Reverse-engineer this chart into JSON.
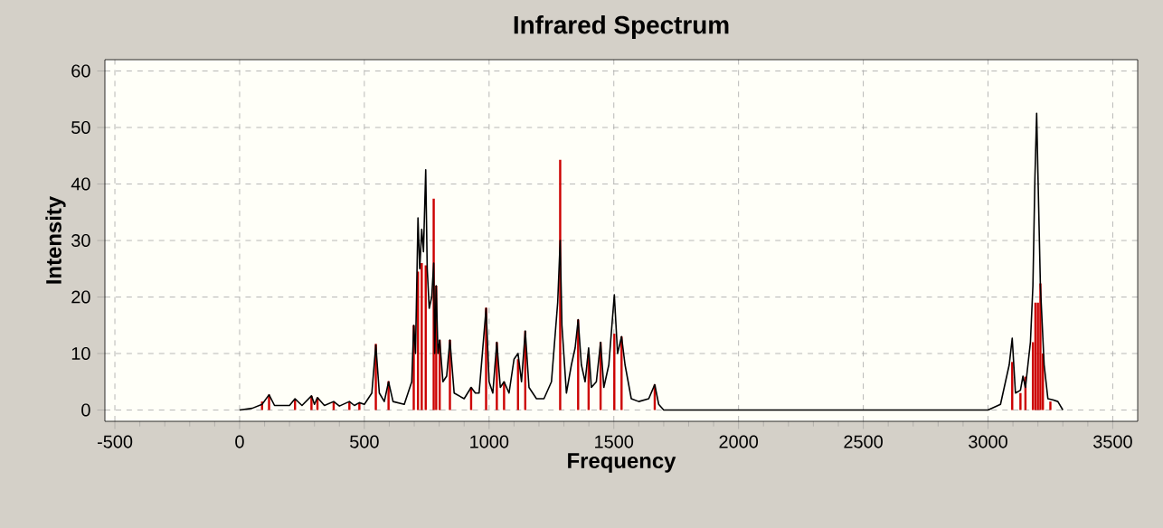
{
  "chart_data": {
    "type": "line",
    "title": "Infrared Spectrum",
    "xlabel": "Frequency",
    "ylabel": "Intensity",
    "xlim": [
      -540,
      3600
    ],
    "ylim": [
      -2,
      62
    ],
    "xticks": [
      -500,
      0,
      500,
      1000,
      1500,
      2000,
      2500,
      3000,
      3500
    ],
    "yticks": [
      0,
      10,
      20,
      30,
      40,
      50,
      60
    ],
    "grid": true,
    "series": [
      {
        "color": "#000000",
        "x": [
          0,
          50,
          90,
          118,
          140,
          200,
          222,
          250,
          288,
          300,
          312,
          340,
          377,
          400,
          440,
          460,
          480,
          500,
          530,
          546,
          560,
          580,
          597,
          615,
          660,
          690,
          698,
          705,
          715,
          722,
          730,
          737,
          746,
          752,
          760,
          770,
          778,
          782,
          788,
          795,
          802,
          815,
          830,
          843,
          860,
          900,
          928,
          945,
          960,
          988,
          1000,
          1015,
          1031,
          1045,
          1060,
          1080,
          1100,
          1116,
          1130,
          1145,
          1160,
          1190,
          1220,
          1250,
          1275,
          1285,
          1292,
          1310,
          1330,
          1345,
          1357,
          1370,
          1385,
          1399,
          1410,
          1430,
          1447,
          1460,
          1480,
          1502,
          1515,
          1531,
          1545,
          1570,
          1600,
          1640,
          1664,
          1680,
          1700,
          3000,
          3050,
          3085,
          3097,
          3110,
          3130,
          3140,
          3150,
          3170,
          3180,
          3188,
          3195,
          3200,
          3210,
          3225,
          3240,
          3260,
          3280,
          3300
        ],
        "values": [
          0,
          0.3,
          1,
          2.7,
          0.8,
          0.8,
          2,
          0.8,
          2.5,
          1,
          2.2,
          0.8,
          1.5,
          0.7,
          1.5,
          0.8,
          1.3,
          1,
          3,
          11.5,
          3,
          1.5,
          5,
          1.5,
          1,
          5,
          15,
          10,
          34,
          25,
          32,
          28,
          42.5,
          25,
          18,
          20,
          26,
          10,
          22,
          10,
          12.4,
          5,
          6,
          12.4,
          3,
          2,
          4,
          3,
          3,
          18,
          5,
          3,
          12,
          4,
          5,
          3,
          9,
          10,
          5,
          14,
          4,
          2,
          2,
          5,
          19,
          30,
          15,
          3,
          8,
          11,
          16,
          8,
          5,
          11,
          4,
          5,
          12,
          4,
          8,
          20.4,
          10,
          13,
          8,
          2,
          1.5,
          2,
          4.5,
          1,
          0,
          0,
          1,
          8,
          12.7,
          3,
          3.5,
          6,
          4,
          12,
          22,
          41,
          52.5,
          42,
          22,
          8,
          2,
          1.8,
          1.5,
          0
        ]
      },
      {
        "type": "bar",
        "color": "#cc0000",
        "x": [
          90,
          118,
          222,
          288,
          312,
          377,
          440,
          480,
          546,
          597,
          698,
          715,
          730,
          746,
          778,
          788,
          802,
          843,
          928,
          988,
          1031,
          1060,
          1116,
          1145,
          1285,
          1357,
          1399,
          1447,
          1502,
          1531,
          1664,
          3097,
          3130,
          3150,
          3180,
          3190,
          3200,
          3210,
          3220,
          3250
        ],
        "values": [
          1.5,
          2.7,
          2,
          2.5,
          2.2,
          1.5,
          1.5,
          1.3,
          11.7,
          5.1,
          15,
          24.5,
          26,
          25.6,
          37.4,
          22,
          12.4,
          12.4,
          4,
          18.1,
          12,
          5,
          9,
          14,
          44.3,
          16,
          10,
          12,
          13.5,
          13,
          4.5,
          8.5,
          3,
          5.9,
          12,
          19,
          19,
          22.4,
          10,
          1.5
        ]
      }
    ]
  }
}
